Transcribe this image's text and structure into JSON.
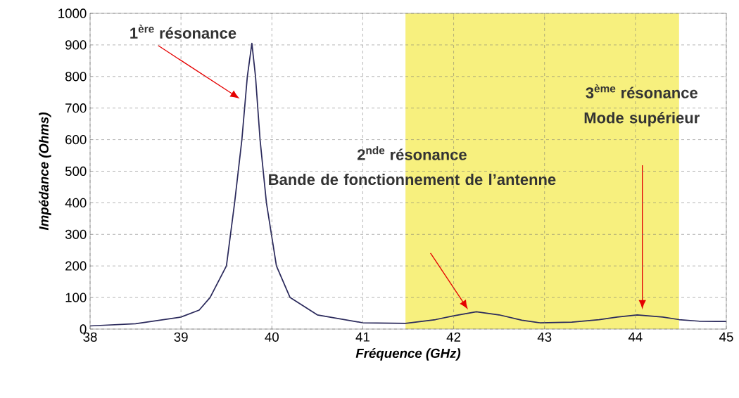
{
  "chart_data": {
    "type": "line",
    "xlabel": "Fréquence (GHz)",
    "ylabel": "Impédance (Ohms)",
    "x": [
      38,
      38.5,
      39,
      39.2,
      39.32,
      39.5,
      39.59,
      39.67,
      39.73,
      39.78,
      39.82,
      39.87,
      39.94,
      40.05,
      40.2,
      40.5,
      41,
      41.47,
      41.8,
      42,
      42.25,
      42.5,
      42.75,
      42.95,
      43.3,
      43.6,
      43.8,
      44.02,
      44.3,
      44.48,
      44.7,
      45
    ],
    "series": [
      {
        "color": "#2b2a5c",
        "values": [
          10,
          17,
          38,
          60,
          100,
          200,
          400,
          600,
          800,
          905,
          800,
          600,
          400,
          200,
          100,
          45,
          20,
          18,
          30,
          42,
          55,
          45,
          28,
          20,
          22,
          30,
          38,
          45,
          38,
          30,
          25,
          24
        ]
      }
    ],
    "xlim": [
      38,
      45
    ],
    "ylim": [
      0,
      1000
    ],
    "xticks": [
      38,
      39,
      40,
      41,
      42,
      43,
      44,
      45
    ],
    "yticks": [
      0,
      100,
      200,
      300,
      400,
      500,
      600,
      700,
      800,
      900,
      1000
    ],
    "grid": true,
    "line_style": "solid",
    "marker": "none",
    "bands": [
      {
        "axis": "x",
        "from": 41.47,
        "to": 44.48,
        "color": "#f7f07e"
      }
    ],
    "annotations": [
      "1$^{ère}$ résonance",
      "2$^{nde}$ résonance",
      "Bande de fonctionnement de l’antenne",
      "3$^{ème}$ résonance",
      "Mode supérieur"
    ]
  }
}
